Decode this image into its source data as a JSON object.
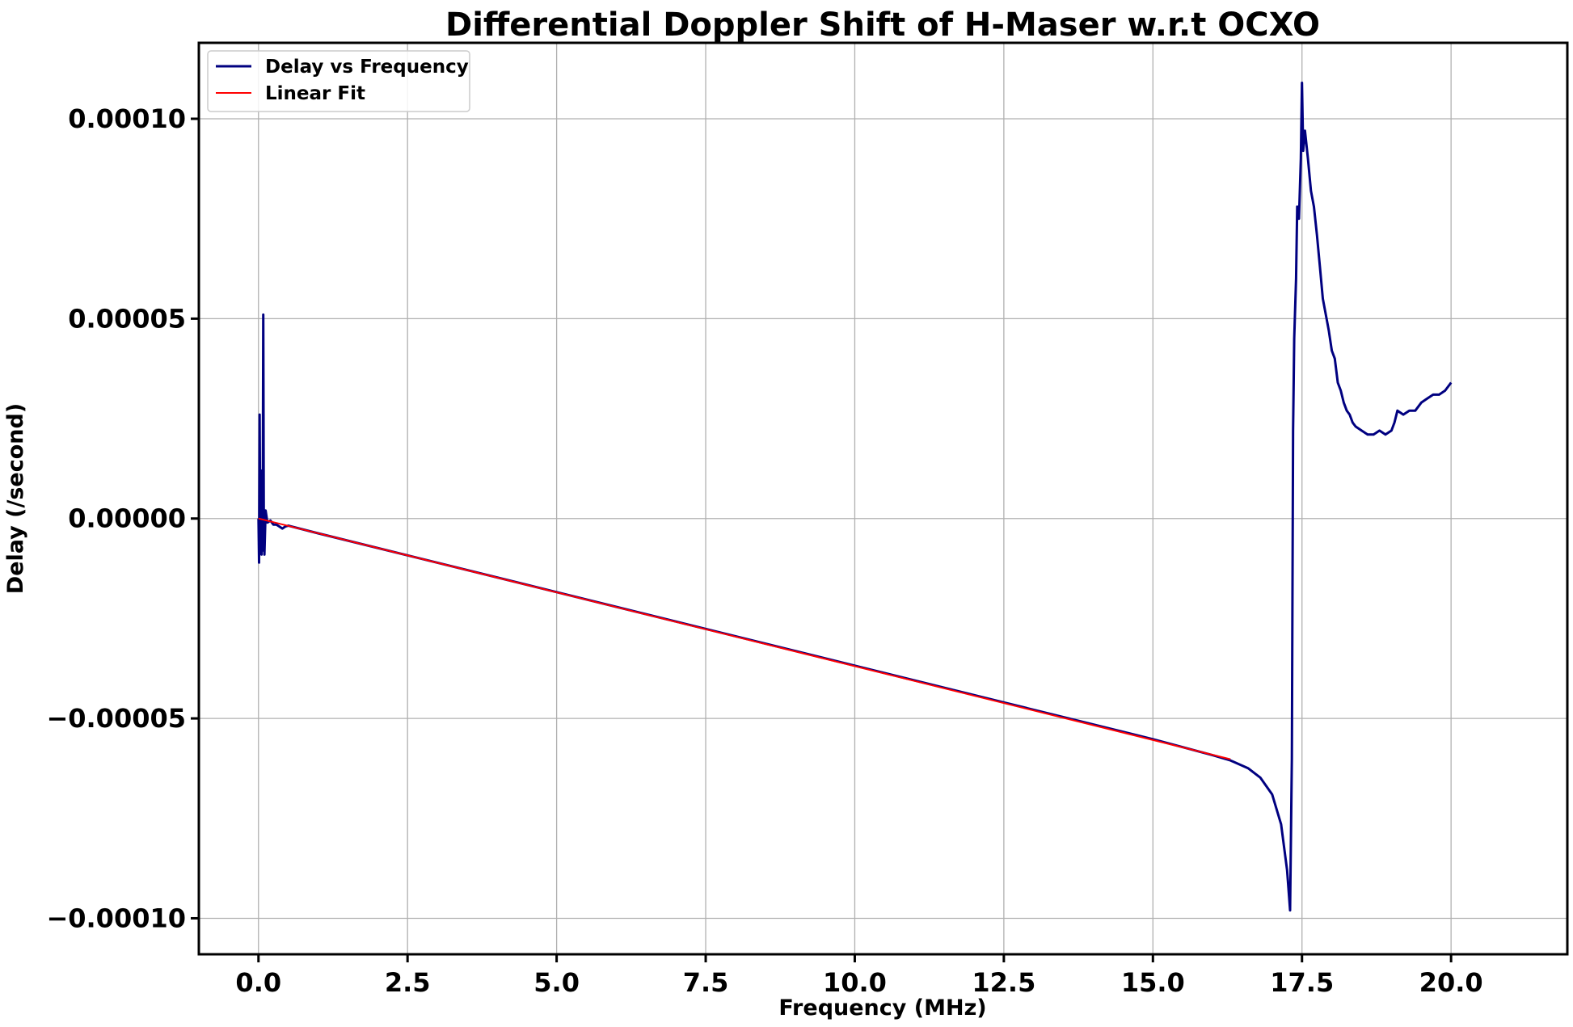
{
  "chart_data": {
    "type": "line",
    "title": "Differential Doppler Shift of H-Maser w.r.t OCXO",
    "xlabel": "Frequency (MHz)",
    "ylabel": "Delay (/second)",
    "xlim": [
      -1.0,
      21.95
    ],
    "ylim": [
      -0.000109,
      0.000119
    ],
    "xticks": [
      0.0,
      2.5,
      5.0,
      7.5,
      10.0,
      12.5,
      15.0,
      17.5,
      20.0
    ],
    "xtick_labels": [
      "0.0",
      "2.5",
      "5.0",
      "7.5",
      "10.0",
      "12.5",
      "15.0",
      "17.5",
      "20.0"
    ],
    "yticks": [
      0.0001,
      5e-05,
      0.0,
      -5e-05,
      -0.0001
    ],
    "ytick_labels": [
      "0.00010",
      "0.00005",
      "0.00000",
      "−0.00005",
      "−0.00010"
    ],
    "grid": true,
    "legend_position": "top-left",
    "series": [
      {
        "name": "Delay vs Frequency",
        "color": "#000080",
        "points": [
          [
            0.0,
            0.0
          ],
          [
            0.01,
            -1.1e-05
          ],
          [
            0.02,
            2.6e-05
          ],
          [
            0.03,
            -6e-06
          ],
          [
            0.04,
            1.2e-05
          ],
          [
            0.05,
            -9e-06
          ],
          [
            0.06,
            5e-06
          ],
          [
            0.07,
            -8e-06
          ],
          [
            0.08,
            5.1e-05
          ],
          [
            0.09,
            -4e-06
          ],
          [
            0.1,
            -9e-06
          ],
          [
            0.12,
            2e-06
          ],
          [
            0.15,
            -1e-06
          ],
          [
            0.2,
            -5e-07
          ],
          [
            0.25,
            -1.5e-06
          ],
          [
            0.3,
            -1.5e-06
          ],
          [
            0.35,
            -2e-06
          ],
          [
            0.4,
            -2.5e-06
          ],
          [
            0.45,
            -2e-06
          ],
          [
            0.5,
            -1.8e-06
          ],
          [
            1.0,
            -3.7e-06
          ],
          [
            2.5,
            -9.2e-06
          ],
          [
            5.0,
            -1.84e-05
          ],
          [
            7.5,
            -2.76e-05
          ],
          [
            10.0,
            -3.68e-05
          ],
          [
            12.5,
            -4.6e-05
          ],
          [
            15.0,
            -5.52e-05
          ],
          [
            15.5,
            -5.72e-05
          ],
          [
            16.0,
            -5.92e-05
          ],
          [
            16.3,
            -6.05e-05
          ],
          [
            16.6,
            -6.25e-05
          ],
          [
            16.8,
            -6.48e-05
          ],
          [
            17.0,
            -6.9e-05
          ],
          [
            17.15,
            -7.65e-05
          ],
          [
            17.25,
            -8.8e-05
          ],
          [
            17.3,
            -9.8e-05
          ],
          [
            17.33,
            -6e-05
          ],
          [
            17.35,
            2.2e-05
          ],
          [
            17.37,
            4.5e-05
          ],
          [
            17.4,
            6e-05
          ],
          [
            17.42,
            7.8e-05
          ],
          [
            17.45,
            7.5e-05
          ],
          [
            17.48,
            9e-05
          ],
          [
            17.5,
            0.000109
          ],
          [
            17.52,
            9.2e-05
          ],
          [
            17.55,
            9.7e-05
          ],
          [
            17.6,
            9e-05
          ],
          [
            17.65,
            8.2e-05
          ],
          [
            17.7,
            7.8e-05
          ],
          [
            17.75,
            7.1e-05
          ],
          [
            17.8,
            6.3e-05
          ],
          [
            17.85,
            5.5e-05
          ],
          [
            17.9,
            5.1e-05
          ],
          [
            17.95,
            4.7e-05
          ],
          [
            18.0,
            4.2e-05
          ],
          [
            18.05,
            4e-05
          ],
          [
            18.1,
            3.4e-05
          ],
          [
            18.15,
            3.2e-05
          ],
          [
            18.2,
            2.9e-05
          ],
          [
            18.25,
            2.7e-05
          ],
          [
            18.3,
            2.6e-05
          ],
          [
            18.35,
            2.4e-05
          ],
          [
            18.4,
            2.3e-05
          ],
          [
            18.5,
            2.2e-05
          ],
          [
            18.6,
            2.1e-05
          ],
          [
            18.7,
            2.1e-05
          ],
          [
            18.8,
            2.2e-05
          ],
          [
            18.9,
            2.1e-05
          ],
          [
            19.0,
            2.2e-05
          ],
          [
            19.05,
            2.4e-05
          ],
          [
            19.1,
            2.7e-05
          ],
          [
            19.2,
            2.6e-05
          ],
          [
            19.3,
            2.7e-05
          ],
          [
            19.4,
            2.7e-05
          ],
          [
            19.5,
            2.9e-05
          ],
          [
            19.6,
            3e-05
          ],
          [
            19.7,
            3.1e-05
          ],
          [
            19.8,
            3.1e-05
          ],
          [
            19.9,
            3.2e-05
          ],
          [
            20.0,
            3.4e-05
          ]
        ]
      },
      {
        "name": "Linear Fit",
        "color": "#ff0000",
        "points": [
          [
            0.0,
            0.0
          ],
          [
            16.3,
            -6.02e-05
          ]
        ]
      }
    ]
  }
}
